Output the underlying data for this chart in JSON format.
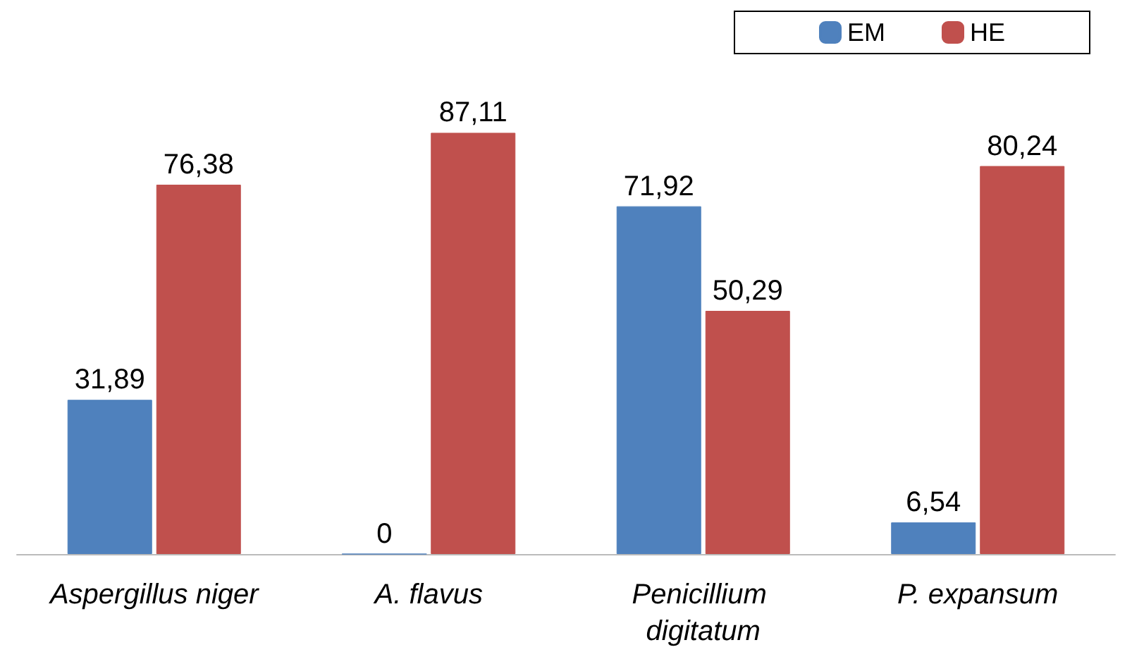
{
  "chart_data": {
    "type": "bar",
    "categories": [
      "Aspergillus niger",
      "A. flavus",
      "Penicillium digitatum",
      "P. expansum"
    ],
    "series": [
      {
        "name": "EM",
        "color": "#4f81bd",
        "values": [
          31.89,
          0,
          71.92,
          6.54
        ],
        "value_labels": [
          "31,89",
          "0",
          "71,92",
          "6,54"
        ]
      },
      {
        "name": "HE",
        "color": "#c0504d",
        "values": [
          76.38,
          87.11,
          50.29,
          80.24
        ],
        "value_labels": [
          "76,38",
          "87,11",
          "50,29",
          "80,24"
        ]
      }
    ],
    "legend": "top right"
  }
}
